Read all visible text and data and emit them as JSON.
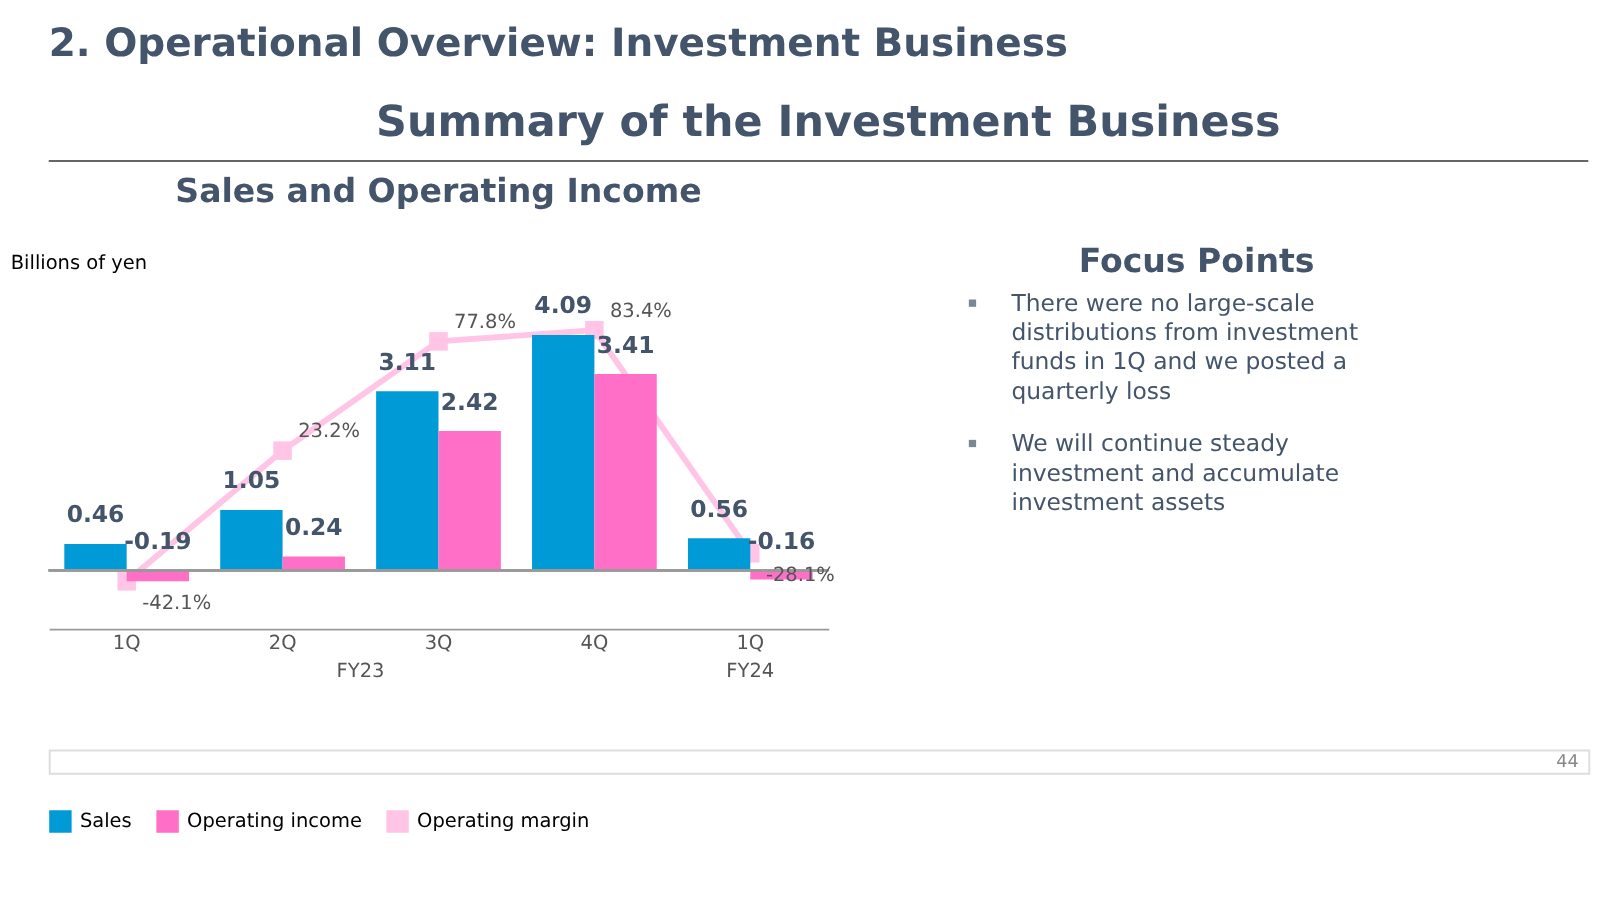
{
  "chart_data": [
    {
      "type": "other",
      "title": "2. Operational Overview: Investment Business",
      "subtitle": "Summary of the Investment Business",
      "annotations": [
        "44"
      ]
    },
    {
      "type": "bar",
      "title": "Sales and Operating Income",
      "ylabel": "Billions of yen",
      "categories": [
        "1Q",
        "2Q",
        "3Q",
        "4Q",
        "1Q"
      ],
      "annotations": [
        "FY23",
        "FY24"
      ],
      "series": [
        {
          "name": "Sales",
          "color": "#009ad6",
          "values": [
            0.46,
            1.05,
            3.11,
            4.09,
            0.56
          ]
        },
        {
          "name": "Operating income",
          "color": "#ff6ec7",
          "values": [
            -0.19,
            0.24,
            2.42,
            3.41,
            -0.16
          ]
        },
        {
          "name": "Operating margin",
          "type": "line",
          "axis": "y2",
          "color": "#ffc4e6",
          "marker": "square",
          "values": [
            -42.1,
            23.2,
            77.8,
            83.4,
            -28.1
          ],
          "value_labels": [
            "-42.1%",
            "23.2%",
            "77.8%",
            "83.4%",
            "-28.1%"
          ]
        }
      ],
      "data_labels": true,
      "legend": "bottom",
      "grid": false
    },
    {
      "type": "other",
      "title": "Focus Points",
      "annotations": [
        "There were no large-scale distributions from investment funds in 1Q and we posted a quarterly loss",
        "We will continue steady investment and accumulate investment assets"
      ]
    }
  ]
}
